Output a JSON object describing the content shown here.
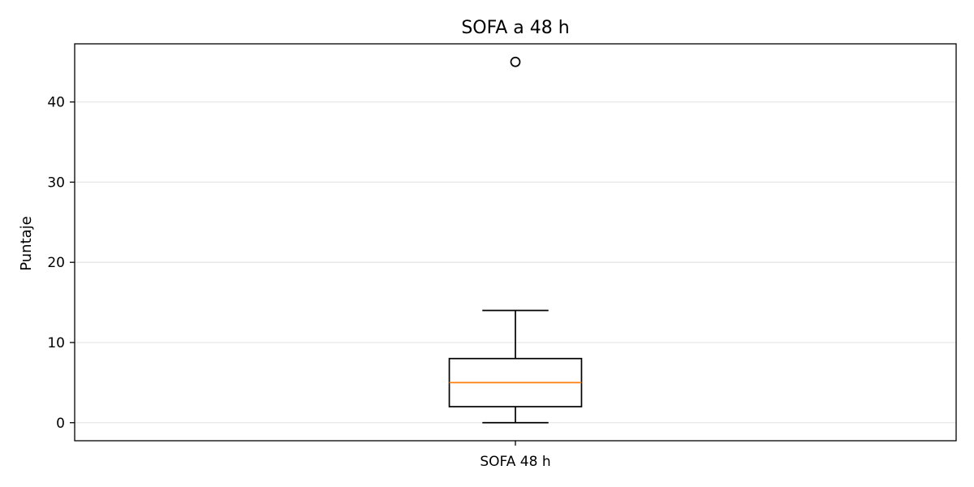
{
  "chart_data": {
    "type": "box",
    "title": "SOFA a 48 h",
    "xlabel": "",
    "ylabel": "Puntaje",
    "categories": [
      "SOFA 48 h"
    ],
    "boxes": [
      {
        "name": "SOFA 48 h",
        "whisker_low": 0,
        "q1": 2,
        "median": 5,
        "q3": 8,
        "whisker_high": 14,
        "outliers": [
          45
        ]
      }
    ],
    "ylim": [
      -2.25,
      47.25
    ],
    "yticks": [
      0,
      10,
      20,
      30,
      40
    ],
    "grid": "horizontal",
    "colors": {
      "box": "#000000",
      "median": "#ff7f0e",
      "grid": "#e6e6e6",
      "outlier": "#000000"
    }
  }
}
